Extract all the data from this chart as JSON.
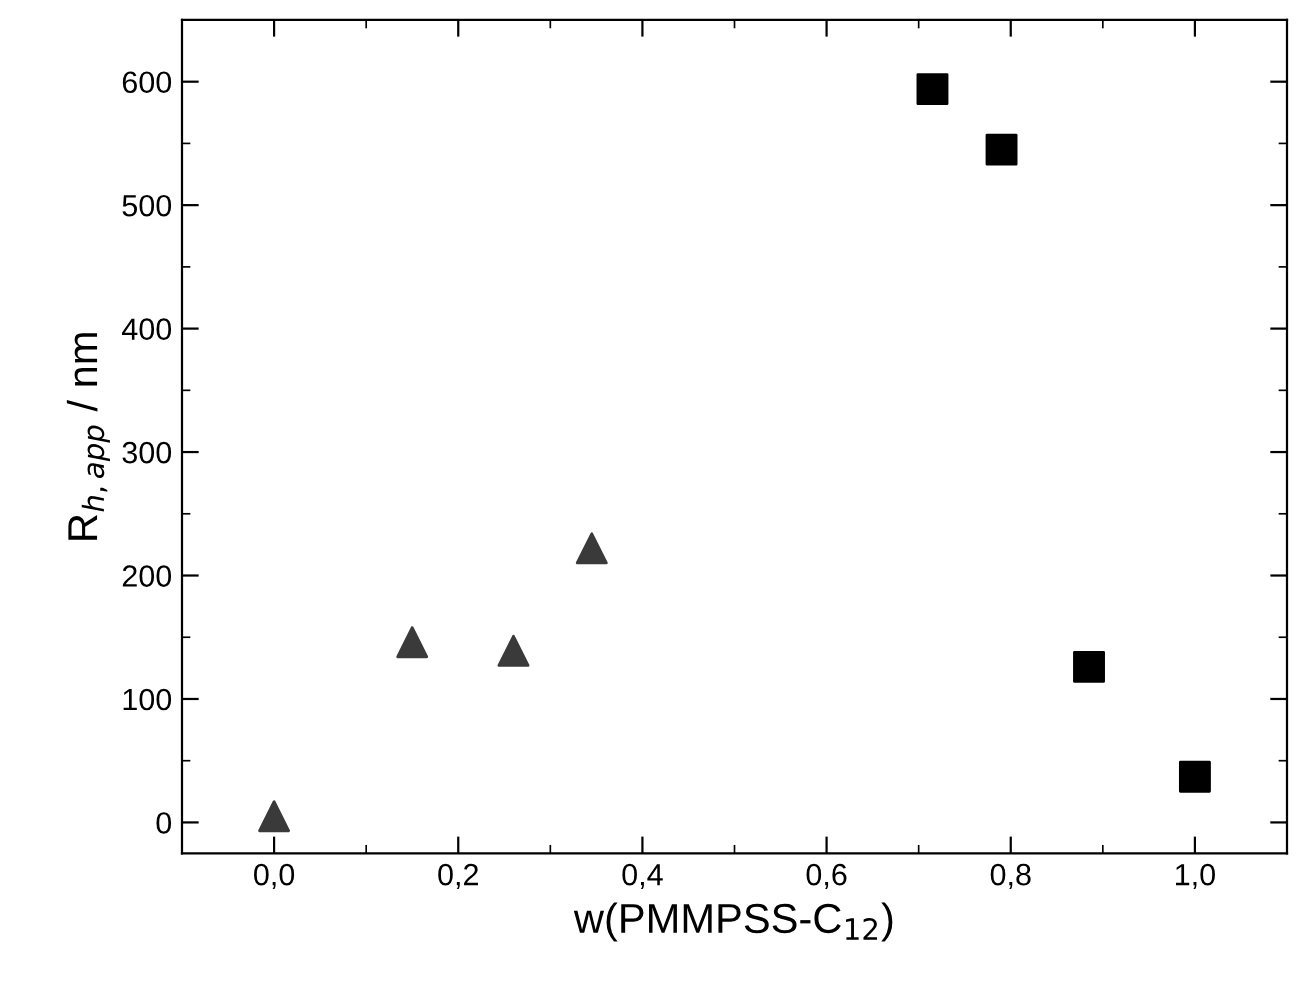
{
  "chart_data": {
    "type": "scatter",
    "xlabel": "w(PMMPSS-C$_{12}$)",
    "ylabel": "R$_{h,app}$ / nm",
    "xlim": [
      -0.1,
      1.1
    ],
    "ylim": [
      -25,
      650
    ],
    "xticks": [
      {
        "value": 0,
        "label": "0,0"
      },
      {
        "value": 0.2,
        "label": "0,2"
      },
      {
        "value": 0.4,
        "label": "0,4"
      },
      {
        "value": 0.6,
        "label": "0,6"
      },
      {
        "value": 0.8,
        "label": "0,8"
      },
      {
        "value": 1.0,
        "label": "1,0"
      }
    ],
    "yticks": [
      0,
      100,
      200,
      300,
      400,
      500,
      600
    ],
    "grid": false,
    "legend": false,
    "series": [
      {
        "color": "#3a3a3a",
        "marker": "triangle",
        "x": [
          0.0,
          0.15,
          0.26,
          0.345
        ],
        "values": [
          5,
          146,
          139,
          222
        ]
      },
      {
        "color": "#000000",
        "marker": "square",
        "x": [
          0.715,
          0.79,
          0.885,
          1.0
        ],
        "values": [
          594,
          545,
          126,
          37
        ]
      }
    ]
  }
}
